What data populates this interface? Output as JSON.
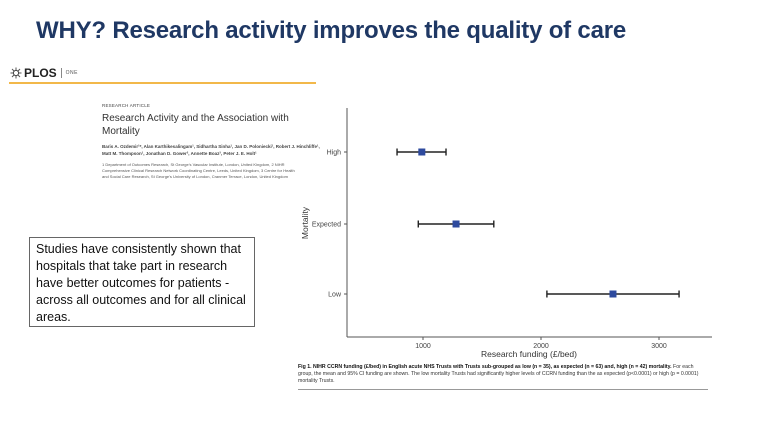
{
  "slide": {
    "title": "WHY? Research activity improves the quality of care"
  },
  "journal": {
    "logo_icon": "plos-sunburst-icon",
    "name": "PLOS",
    "sub": "ONE",
    "accent_color": "#f2b84a"
  },
  "article": {
    "kicker": "RESEARCH ARTICLE",
    "title": "Research Activity and the Association with Mortality",
    "authors": "Baris A. Ozdemir¹*, Alan Karthikesalingam¹, Sidhartha Sinha¹, Jan D. Poloniecki¹, Robert J. Hinchliffe¹, Matt M. Thompson¹, Jonathan D. Gower², Annette Boaz³, Peter J. E. Holt¹",
    "affiliations": "1 Department of Outcomes Research, St George's Vascular Institute, London, United Kingdom, 2 NIHR Comprehensive Clinical Research Network Coordinating Centre, Leeds, United Kingdom, 3 Centre for Health and Social Care Research, St George's University of London, Cranmer Terrace, London, United Kingdom"
  },
  "callout": {
    "text": "Studies have consistently shown that hospitals that take part in research have better outcomes for patients  - across all outcomes and for all clinical areas."
  },
  "chart_data": {
    "type": "scatter",
    "subtype": "dot-and-whisker (mean with 95% CI)",
    "title": "",
    "xlabel": "Research funding (£/bed)",
    "ylabel": "Mortality",
    "categories": [
      "High",
      "Expected",
      "Low"
    ],
    "x_ticks": [
      1000,
      2000,
      3000
    ],
    "xlim": [
      355,
      3400
    ],
    "series": [
      {
        "name": "Mean funding",
        "values": [
          990,
          1280,
          2610
        ]
      },
      {
        "name": "95% CI lower",
        "values": [
          780,
          960,
          2050
        ]
      },
      {
        "name": "95% CI upper",
        "values": [
          1195,
          1600,
          3170
        ]
      }
    ],
    "marker_color": "#2e4a9e",
    "grid": false,
    "legend": "none"
  },
  "caption": {
    "label": "Fig 1. NIHR CCRN funding (£/bed) in English acute NHS Trusts with Trusts sub-grouped as low (n = 35), as expected (n = 63) and, high (n = 42) mortality.",
    "body": " For each group, the mean and 95% CI funding are shown. The low mortality Trusts had significantly higher levels of CCRN funding than the as expected (p<0.0001) or high (p = 0.0001) mortality Trusts."
  }
}
